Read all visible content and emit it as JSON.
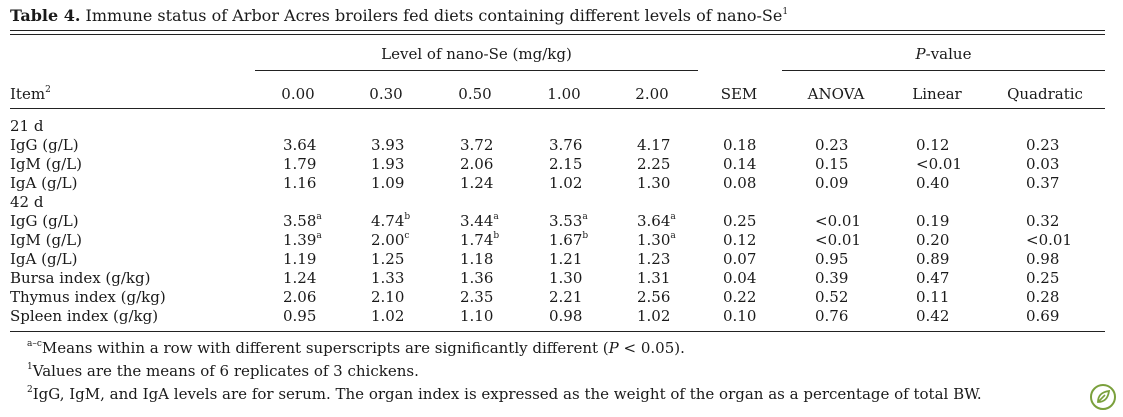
{
  "caption": {
    "label": "Table 4.",
    "text": " Immune status of Arbor Acres broilers fed diets containing different levels of nano-Se",
    "sup": "1"
  },
  "header": {
    "level_span": "Level of nano-Se (mg/kg)",
    "pvalue_span_italic": "P",
    "pvalue_span_rest": "-value",
    "item": "Item",
    "item_sup": "2",
    "columns": [
      "0.00",
      "0.30",
      "0.50",
      "1.00",
      "2.00",
      "SEM",
      "ANOVA",
      "Linear",
      "Quadratic"
    ]
  },
  "rows": [
    {
      "type": "group",
      "label": "21 d"
    },
    {
      "type": "data",
      "label": "IgG (g/L)",
      "values": [
        "3.64",
        "3.93",
        "3.72",
        "3.76",
        "4.17",
        "0.18",
        "0.23",
        "0.12",
        "0.23"
      ],
      "sups": [
        "",
        "",
        "",
        "",
        "",
        "",
        "",
        "",
        ""
      ]
    },
    {
      "type": "data",
      "label": "IgM (g/L)",
      "values": [
        "1.79",
        "1.93",
        "2.06",
        "2.15",
        "2.25",
        "0.14",
        "0.15",
        "<0.01",
        "0.03"
      ],
      "sups": [
        "",
        "",
        "",
        "",
        "",
        "",
        "",
        "",
        ""
      ]
    },
    {
      "type": "data",
      "label": "IgA (g/L)",
      "values": [
        "1.16",
        "1.09",
        "1.24",
        "1.02",
        "1.30",
        "0.08",
        "0.09",
        "0.40",
        "0.37"
      ],
      "sups": [
        "",
        "",
        "",
        "",
        "",
        "",
        "",
        "",
        ""
      ]
    },
    {
      "type": "group",
      "label": "42 d"
    },
    {
      "type": "data",
      "label": "IgG (g/L)",
      "values": [
        "3.58",
        "4.74",
        "3.44",
        "3.53",
        "3.64",
        "0.25",
        "<0.01",
        "0.19",
        "0.32"
      ],
      "sups": [
        "a",
        "b",
        "a",
        "a",
        "a",
        "",
        "",
        "",
        ""
      ]
    },
    {
      "type": "data",
      "label": "IgM (g/L)",
      "values": [
        "1.39",
        "2.00",
        "1.74",
        "1.67",
        "1.30",
        "0.12",
        "<0.01",
        "0.20",
        "<0.01"
      ],
      "sups": [
        "a",
        "c",
        "b",
        "b",
        "a",
        "",
        "",
        "",
        ""
      ]
    },
    {
      "type": "data",
      "label": "IgA (g/L)",
      "values": [
        "1.19",
        "1.25",
        "1.18",
        "1.21",
        "1.23",
        "0.07",
        "0.95",
        "0.89",
        "0.98"
      ],
      "sups": [
        "",
        "",
        "",
        "",
        "",
        "",
        "",
        "",
        ""
      ]
    },
    {
      "type": "data",
      "label": "Bursa index (g/kg)",
      "values": [
        "1.24",
        "1.33",
        "1.36",
        "1.30",
        "1.31",
        "0.04",
        "0.39",
        "0.47",
        "0.25"
      ],
      "sups": [
        "",
        "",
        "",
        "",
        "",
        "",
        "",
        "",
        ""
      ]
    },
    {
      "type": "data",
      "label": "Thymus index (g/kg)",
      "values": [
        "2.06",
        "2.10",
        "2.35",
        "2.21",
        "2.56",
        "0.22",
        "0.52",
        "0.11",
        "0.28"
      ],
      "sups": [
        "",
        "",
        "",
        "",
        "",
        "",
        "",
        "",
        ""
      ]
    },
    {
      "type": "data",
      "label": "Spleen index (g/kg)",
      "values": [
        "0.95",
        "1.02",
        "1.10",
        "0.98",
        "1.02",
        "0.10",
        "0.76",
        "0.42",
        "0.69"
      ],
      "sups": [
        "",
        "",
        "",
        "",
        "",
        "",
        "",
        "",
        ""
      ]
    }
  ],
  "footnotes": {
    "fn1_sup": "a–c",
    "fn1_text": "Means within a row with different superscripts are significantly different (",
    "fn1_italic": "P",
    "fn1_tail": " < 0.05).",
    "fn2_sup": "1",
    "fn2_text": "Values are the means of 6 replicates of 3 chickens.",
    "fn3_sup": "2",
    "fn3_text": "IgG, IgM, and IgA levels are for serum. The organ index is expressed as the weight of the organ as a percentage of total BW."
  },
  "logo": {
    "icon": "leaf-badge-icon",
    "color": "#7aa03c"
  }
}
